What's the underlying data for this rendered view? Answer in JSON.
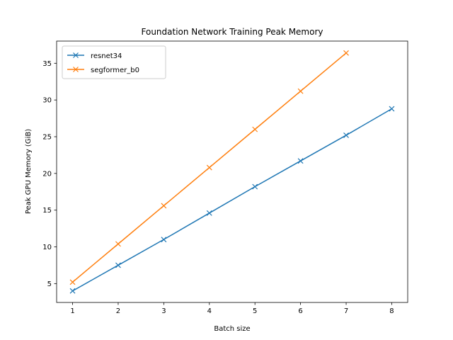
{
  "chart_data": {
    "type": "line",
    "title": "Foundation Network Training Peak Memory",
    "xlabel": "Batch size",
    "ylabel": "Peak GPU Memory (GiB)",
    "xlim": [
      0.65,
      8.35
    ],
    "ylim": [
      2.43,
      38.02
    ],
    "x_ticks": [
      1,
      2,
      3,
      4,
      5,
      6,
      7,
      8
    ],
    "y_ticks": [
      5,
      10,
      15,
      20,
      25,
      30,
      35
    ],
    "grid": false,
    "legend_position": "top-left",
    "marker": "x",
    "series": [
      {
        "name": "resnet34",
        "color": "#1f77b4",
        "x": [
          1,
          2,
          3,
          4,
          5,
          6,
          7,
          8
        ],
        "y": [
          4.0,
          7.5,
          11.0,
          14.6,
          18.2,
          21.7,
          25.2,
          28.8
        ]
      },
      {
        "name": "segformer_b0",
        "color": "#ff7f0e",
        "x": [
          1,
          2,
          3,
          4,
          5,
          6,
          7
        ],
        "y": [
          5.2,
          10.4,
          15.6,
          20.8,
          26.0,
          31.2,
          36.4
        ]
      }
    ]
  }
}
